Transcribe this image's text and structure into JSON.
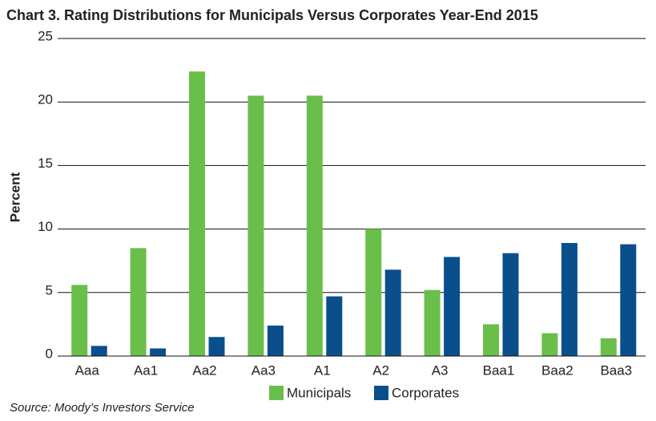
{
  "chart_data": {
    "type": "bar",
    "title": "Chart 3. Rating Distributions for Municipals Versus Corporates Year-End 2015",
    "y_label": "Percent",
    "categories": [
      "Aaa",
      "Aa1",
      "Aa2",
      "Aa3",
      "A1",
      "A2",
      "A3",
      "Baa1",
      "Baa2",
      "Baa3"
    ],
    "series": [
      {
        "name": "Municipals",
        "color": "#6abf4b",
        "values": [
          5.6,
          8.5,
          22.4,
          20.5,
          20.5,
          10.0,
          5.2,
          2.5,
          1.8,
          1.4
        ]
      },
      {
        "name": "Corporates",
        "color": "#0a4f8c",
        "values": [
          0.8,
          0.6,
          1.5,
          2.4,
          4.7,
          6.8,
          7.8,
          8.1,
          8.9,
          8.8
        ]
      }
    ],
    "ylim": [
      0,
      25
    ],
    "yticks": [
      0,
      5,
      10,
      15,
      20,
      25
    ],
    "grid": true,
    "legend": "bottom",
    "source": "Source: Moody’s Investors Service"
  }
}
